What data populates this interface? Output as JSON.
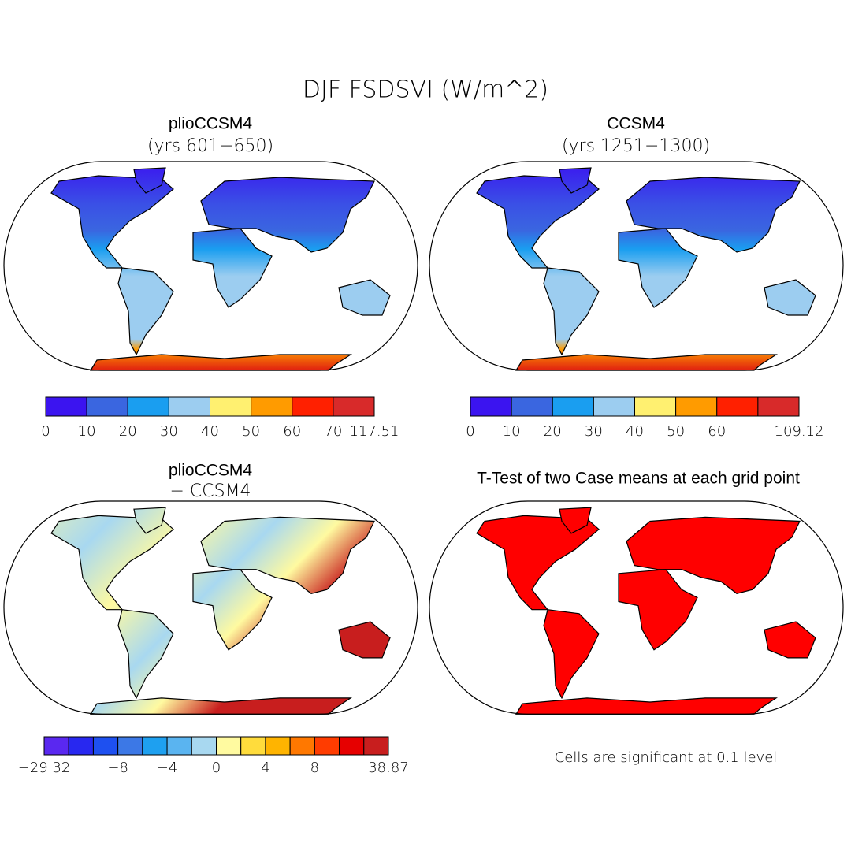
{
  "title": "DJF FSDSVI (W/m^2)",
  "panels": [
    {
      "title": "plioCCSM4",
      "subtitle": "(yrs 601−650)"
    },
    {
      "title": "CCSM4",
      "subtitle": "(yrs 1251−1300)"
    },
    {
      "title": "plioCCSM4",
      "subtitle": "− CCSM4"
    },
    {
      "title": "T-Test of two Case means at each grid point"
    }
  ],
  "colorbars": [
    {
      "colors": [
        "#3b14f0",
        "#3a66e0",
        "#1a9ef0",
        "#9ccdf0",
        "#fff070",
        "#ff9b00",
        "#ff2000",
        "#d82a2a"
      ],
      "labels": [
        "0",
        "10",
        "20",
        "30",
        "40",
        "50",
        "60",
        "70",
        "117.51"
      ]
    },
    {
      "colors": [
        "#3b14f0",
        "#3a66e0",
        "#1a9ef0",
        "#9ccdf0",
        "#fff070",
        "#ff9b00",
        "#ff2000",
        "#d82a2a"
      ],
      "labels": [
        "0",
        "10",
        "20",
        "30",
        "40",
        "50",
        "60",
        null,
        "109.12"
      ]
    },
    {
      "colors": [
        "#5a28f0",
        "#2828f0",
        "#1e50f0",
        "#3c78e6",
        "#1ea0f0",
        "#5ab4f0",
        "#a8d8f0",
        "#fffaa0",
        "#ffdc3c",
        "#ffb400",
        "#ff7800",
        "#ff3c00",
        "#e60000",
        "#c81e1e"
      ],
      "labels": [
        "−29.32",
        null,
        null,
        "−8",
        null,
        "−4",
        null,
        "0",
        null,
        "4",
        null,
        "8",
        null,
        null,
        "38.87"
      ]
    }
  ],
  "note": "Cells are significant at 0.1 level"
}
